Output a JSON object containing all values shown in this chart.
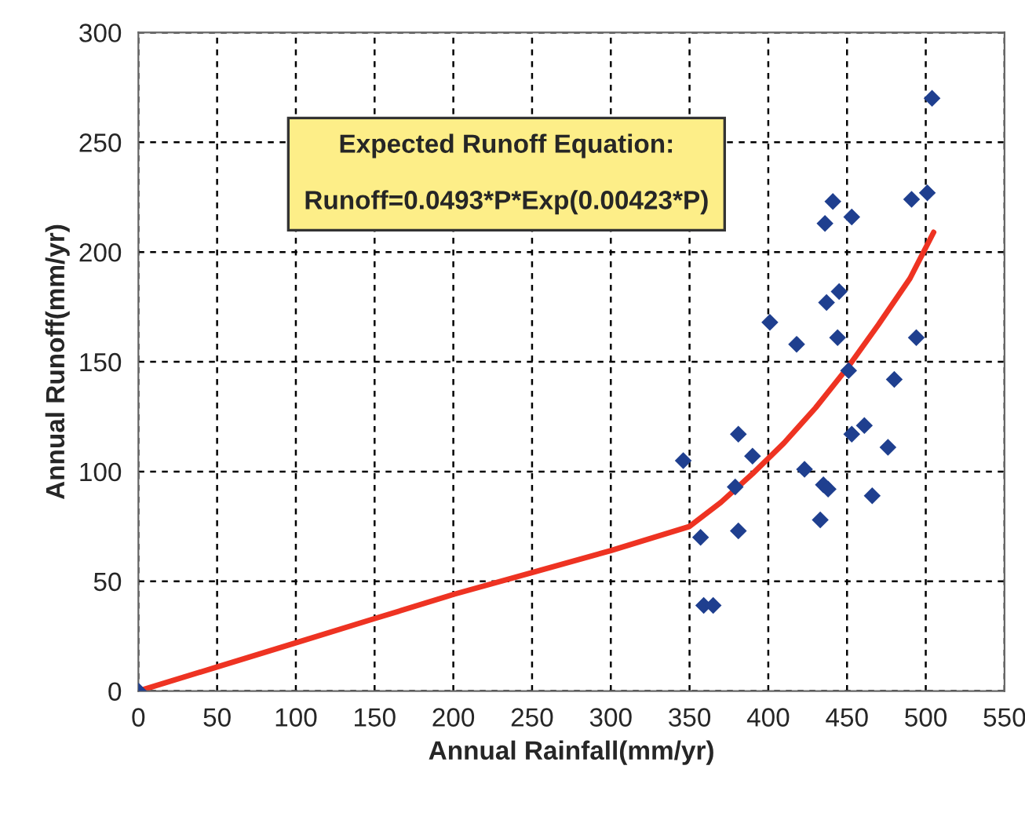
{
  "chart_data": {
    "type": "scatter",
    "xlabel": "Annual Rainfall(mm/yr)",
    "ylabel": "Annual Runoff(mm/yr)",
    "annotations": [
      "Expected Runoff Equation:\n\nRunoff=0.0493*P*Exp(0.00423*P)"
    ],
    "xlim": [
      0,
      550
    ],
    "xticks": [
      0,
      50,
      100,
      150,
      200,
      250,
      300,
      350,
      400,
      450,
      500,
      550
    ],
    "ylim": [
      0,
      300
    ],
    "yticks": [
      0,
      50,
      100,
      150,
      200,
      250,
      300
    ],
    "grid": true,
    "marker": "diamond",
    "series": [
      {
        "color": "#1f3f8f",
        "x": [
          0,
          346,
          357,
          359,
          365,
          381,
          390,
          379,
          381,
          401,
          418,
          423,
          433,
          435,
          438,
          436,
          441,
          453,
          437,
          445,
          444,
          451,
          453,
          461,
          466,
          480,
          476,
          491,
          501,
          494,
          504
        ],
        "values": [
          0,
          105,
          70,
          39,
          39,
          117,
          107,
          93,
          73,
          168,
          158,
          101,
          78,
          94,
          92,
          213,
          223,
          216,
          177,
          182,
          161,
          146,
          117,
          121,
          89,
          142,
          111,
          224,
          227,
          161,
          270
        ]
      },
      {
        "type": "line",
        "color": "#ee3322",
        "marker": "none",
        "line_style": "solid",
        "x": [
          0,
          50,
          100,
          150,
          200,
          250,
          300,
          350,
          370,
          390,
          410,
          430,
          450,
          470,
          490,
          505
        ],
        "values": [
          0,
          11,
          22,
          33,
          44,
          54,
          64,
          75,
          86,
          99,
          113,
          129,
          147,
          167,
          188,
          209
        ]
      }
    ]
  }
}
